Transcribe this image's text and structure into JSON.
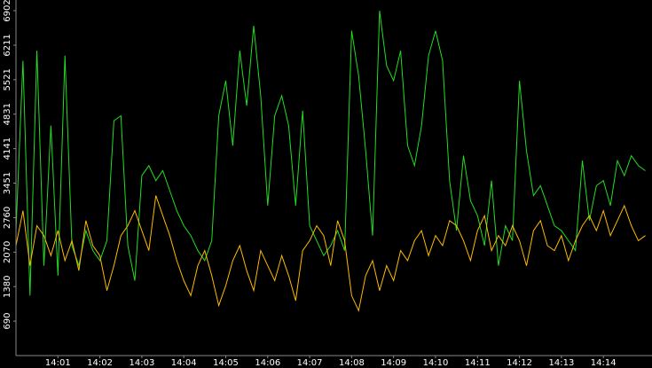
{
  "chart_data": {
    "type": "line",
    "categories": [
      null,
      null,
      null,
      null,
      null,
      null,
      "14:01",
      null,
      null,
      null,
      null,
      null,
      "14:02",
      null,
      null,
      null,
      null,
      null,
      "14:03",
      null,
      null,
      null,
      null,
      null,
      "14:04",
      null,
      null,
      null,
      null,
      null,
      "14:05",
      null,
      null,
      null,
      null,
      null,
      "14:06",
      null,
      null,
      null,
      null,
      null,
      "14:07",
      null,
      null,
      null,
      null,
      null,
      "14:08",
      null,
      null,
      null,
      null,
      null,
      "14:09",
      null,
      null,
      null,
      null,
      null,
      "14:10",
      null,
      null,
      null,
      null,
      null,
      "14:11",
      null,
      null,
      null,
      null,
      null,
      "14:12",
      null,
      null,
      null,
      null,
      null,
      "14:13",
      null,
      null,
      null,
      null,
      null,
      "14:14",
      null,
      null,
      null,
      null,
      null,
      null
    ],
    "series": [
      {
        "color": "#22dd22",
        "values": [
          2500,
          5900,
          1200,
          6100,
          1800,
          4600,
          1600,
          6000,
          2200,
          1800,
          2500,
          2100,
          1900,
          2300,
          4700,
          4800,
          2200,
          1500,
          3600,
          3800,
          3500,
          3700,
          3300,
          2900,
          2600,
          2400,
          2100,
          1900,
          2300,
          4800,
          5500,
          4200,
          6100,
          5000,
          6600,
          5200,
          3000,
          4800,
          5200,
          4600,
          3000,
          4900,
          2600,
          2300,
          2000,
          2200,
          2500,
          2100,
          6500,
          5600,
          4100,
          2400,
          6900,
          5800,
          5500,
          6100,
          4200,
          3800,
          4600,
          6000,
          6500,
          5900,
          3500,
          2500,
          4000,
          3100,
          2800,
          2200,
          3500,
          1800,
          2600,
          2300,
          5500,
          4100,
          3200,
          3400,
          3000,
          2600,
          2500,
          2300,
          2100,
          3900,
          2700,
          3400,
          3500,
          3000,
          3900,
          3600,
          4000,
          3800,
          3700
        ]
      },
      {
        "color": "#ffbb00",
        "values": [
          2200,
          2900,
          1800,
          2600,
          2400,
          2000,
          2500,
          1900,
          2300,
          1700,
          2700,
          2200,
          2000,
          1300,
          1800,
          2400,
          2600,
          2900,
          2500,
          2100,
          3200,
          2800,
          2400,
          1900,
          1500,
          1200,
          1800,
          2100,
          1600,
          1000,
          1400,
          1900,
          2200,
          1700,
          1300,
          2100,
          1800,
          1500,
          2000,
          1600,
          1100,
          2100,
          2300,
          2600,
          2400,
          1800,
          2700,
          2300,
          1200,
          900,
          1600,
          1900,
          1300,
          1800,
          1500,
          2100,
          1900,
          2300,
          2500,
          2000,
          2400,
          2200,
          2700,
          2600,
          2300,
          1900,
          2500,
          2800,
          2100,
          2400,
          2200,
          2600,
          2300,
          1800,
          2500,
          2700,
          2200,
          2100,
          2400,
          1900,
          2300,
          2600,
          2800,
          2500,
          2900,
          2400,
          2700,
          3000,
          2600,
          2300,
          2400
        ]
      }
    ],
    "ylim": [
      0,
      7115
    ],
    "yticks": [
      690,
      1380,
      2070,
      2760,
      3451,
      4141,
      4831,
      5521,
      6211,
      6902
    ]
  }
}
